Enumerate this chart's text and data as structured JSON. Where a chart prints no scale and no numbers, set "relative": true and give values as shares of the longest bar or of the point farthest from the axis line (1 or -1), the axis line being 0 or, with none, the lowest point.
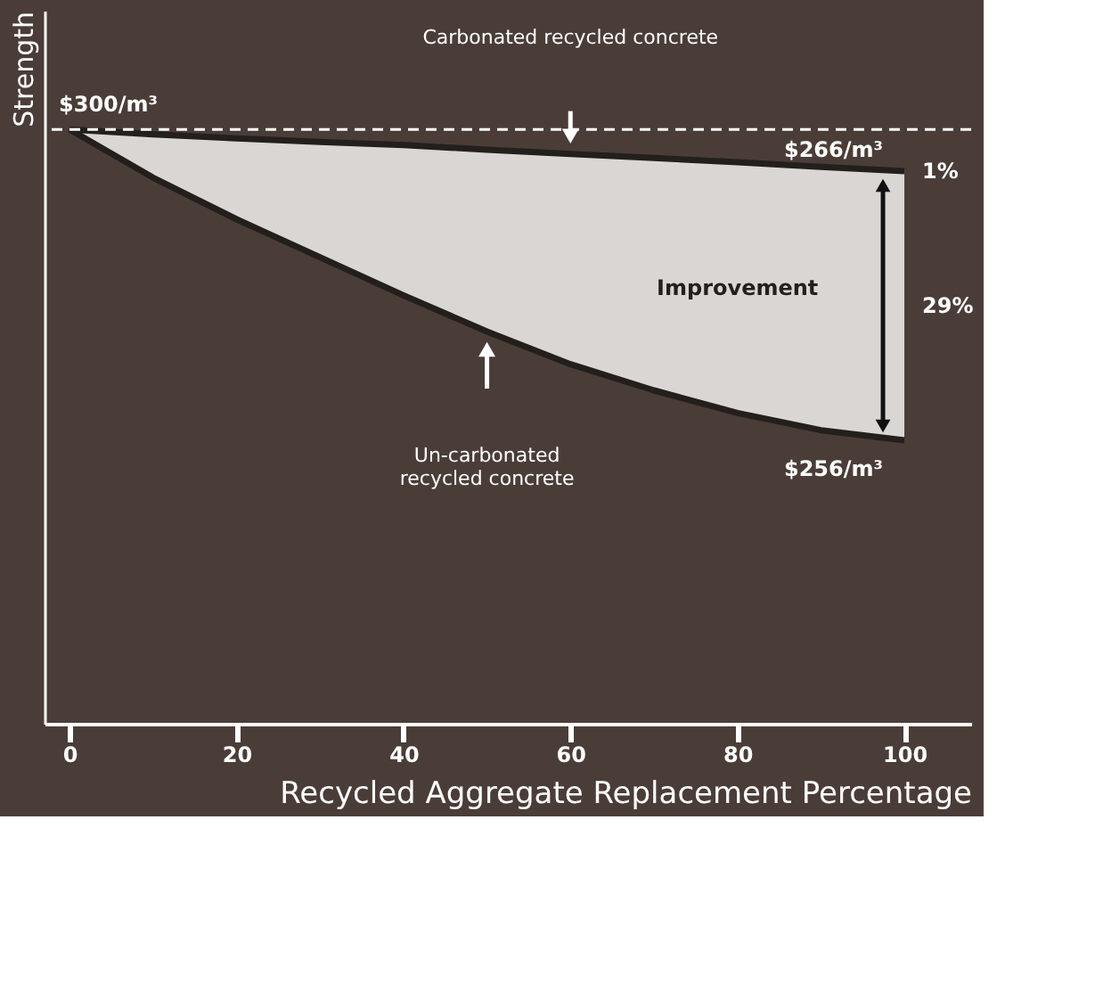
{
  "chart_data": {
    "type": "line",
    "relative": true,
    "xlabel": "Recycled Aggregate Replacement Percentage",
    "ylabel": "Strength",
    "x": [
      0,
      10,
      20,
      30,
      40,
      50,
      60,
      70,
      80,
      90,
      100
    ],
    "xlim": [
      -3,
      108
    ],
    "xticks": [
      0,
      20,
      40,
      60,
      80,
      100
    ],
    "series": [
      {
        "color": "#231f1c",
        "values": [
          1,
          0.992,
          0.985,
          0.979,
          0.974,
          0.966,
          0.959,
          0.952,
          0.945,
          0.937,
          0.93
        ],
        "lower": [
          1,
          0.919,
          0.849,
          0.785,
          0.721,
          0.66,
          0.605,
          0.561,
          0.523,
          0.494,
          0.477
        ],
        "upper": [
          1,
          0.992,
          0.985,
          0.979,
          0.974,
          0.966,
          0.959,
          0.952,
          0.945,
          0.937,
          0.93
        ]
      },
      {
        "color": "#231f1c",
        "values": [
          1,
          0.919,
          0.849,
          0.785,
          0.721,
          0.66,
          0.605,
          0.561,
          0.523,
          0.494,
          0.477
        ]
      }
    ],
    "ref_lines": [
      {
        "axis": "y",
        "value": 1,
        "label": "$300/m³",
        "color": "#ffffff",
        "line_style": "dashed"
      }
    ],
    "annotations": [
      "Carbonated recycled concrete",
      "Un-carbonated recycled concrete",
      "$266/m³",
      "1%",
      "$256/m³",
      "29%",
      "Improvement"
    ],
    "grid": false,
    "marker": "none",
    "line_style": "solid"
  }
}
